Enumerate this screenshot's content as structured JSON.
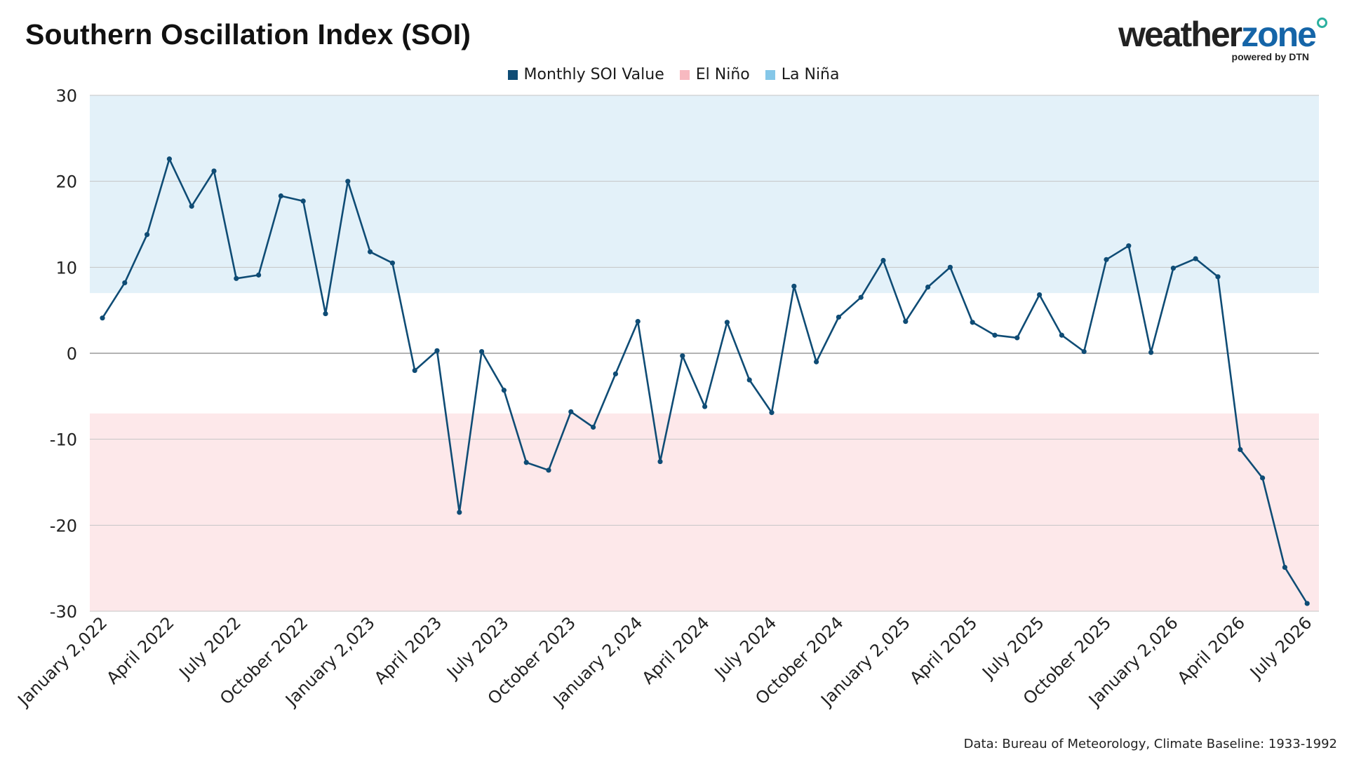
{
  "title": "Southern Oscillation Index (SOI)",
  "logo": {
    "word_a": "weather",
    "word_b": "zone",
    "tagline": "powered by DTN"
  },
  "footer": "Data: Bureau of Meteorology, Climate Baseline: 1933-1992",
  "colors": {
    "line": "#0f4c75",
    "el_nino_band": "#fde8ea",
    "la_nina_band": "#e3f1f9",
    "el_nino_swatch": "#f7b9c0",
    "la_nina_swatch": "#85c7e8",
    "series_swatch": "#0f4c75",
    "grid": "#c5c5c5",
    "zero_line": "#9a9a9a"
  },
  "legend": [
    {
      "label": "Monthly SOI Value",
      "color": "#0f4c75"
    },
    {
      "label": "El Niño",
      "color": "#f7b9c0"
    },
    {
      "label": "La Niña",
      "color": "#85c7e8"
    }
  ],
  "chart_data": {
    "type": "line",
    "title": "Southern Oscillation Index (SOI)",
    "xlabel": "",
    "ylabel": "",
    "ylim": [
      -30,
      30
    ],
    "yticks": [
      30,
      20,
      10,
      0,
      -10,
      -20,
      -30
    ],
    "grid": true,
    "legend_position": "top-center",
    "bands": [
      {
        "name": "La Niña",
        "from": 7,
        "to": 30
      },
      {
        "name": "El Niño",
        "from": -30,
        "to": -7
      }
    ],
    "x": [
      "2022-01",
      "2022-02",
      "2022-03",
      "2022-04",
      "2022-05",
      "2022-06",
      "2022-07",
      "2022-08",
      "2022-09",
      "2022-10",
      "2022-11",
      "2022-12",
      "2023-01",
      "2023-02",
      "2023-03",
      "2023-04",
      "2023-05",
      "2023-06",
      "2023-07",
      "2023-08",
      "2023-09",
      "2023-10",
      "2023-11",
      "2023-12",
      "2024-01",
      "2024-02",
      "2024-03",
      "2024-04",
      "2024-05",
      "2024-06",
      "2024-07",
      "2024-08",
      "2024-09",
      "2024-10",
      "2024-11",
      "2024-12",
      "2025-01",
      "2025-02",
      "2025-03",
      "2025-04",
      "2025-05",
      "2025-06",
      "2025-07",
      "2025-08",
      "2025-09",
      "2025-10",
      "2025-11",
      "2025-12",
      "2026-01",
      "2026-02",
      "2026-03",
      "2026-04",
      "2026-05",
      "2026-06",
      "2026-07"
    ],
    "tick_labels": [
      "January 2,022",
      "April 2022",
      "July 2022",
      "October 2022",
      "January 2,023",
      "April 2023",
      "July 2023",
      "October 2023",
      "January 2,024",
      "April 2024",
      "July 2024",
      "October 2024",
      "January 2,025",
      "April 2025",
      "July 2025",
      "October 2025",
      "January 2,026",
      "April 2026",
      "July 2026"
    ],
    "series": [
      {
        "name": "Monthly SOI Value",
        "values": [
          4.1,
          8.2,
          13.8,
          22.6,
          17.1,
          21.2,
          8.7,
          9.1,
          18.3,
          17.7,
          4.6,
          20.0,
          11.8,
          10.5,
          -2.0,
          0.3,
          -18.5,
          0.2,
          -4.3,
          -12.7,
          -13.6,
          -6.8,
          -8.6,
          -2.4,
          3.7,
          -12.6,
          -0.3,
          -6.2,
          3.6,
          -3.1,
          -6.9,
          7.8,
          -1.0,
          4.2,
          6.5,
          10.8,
          3.7,
          7.7,
          10.0,
          3.6,
          2.1,
          1.8,
          6.8,
          2.1,
          0.2,
          10.9,
          12.5,
          0.1,
          9.9,
          11.0,
          8.9,
          -11.2,
          -14.5,
          -24.9,
          -29.1
        ]
      }
    ]
  }
}
